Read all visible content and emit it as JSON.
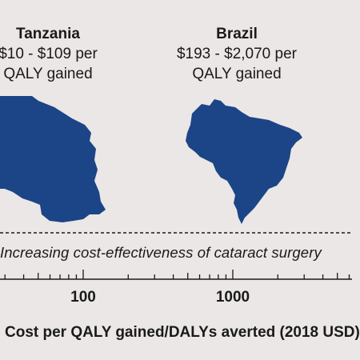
{
  "countries": [
    {
      "name": "Tanzania",
      "range_line1": "$10 - $109 per",
      "range_line2": "QALY gained",
      "color": "#1b4586"
    },
    {
      "name": "Brazil",
      "range_line1": "$193 - $2,070 per",
      "range_line2": "QALY gained",
      "color": "#1b4586"
    }
  ],
  "axis": {
    "caption": "Increasing cost-effectiveness of cataract surgery",
    "scale": "log",
    "ticks": [
      "100",
      "1000"
    ],
    "title": "Cost per QALY gained/DALYs averted (2018 USD)"
  }
}
